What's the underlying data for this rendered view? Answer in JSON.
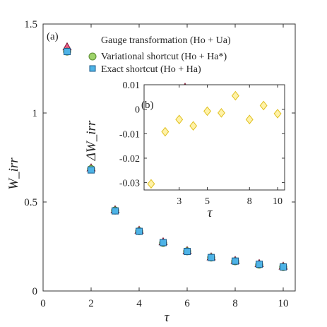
{
  "chart_data": [
    {
      "panel": "(a)",
      "type": "scatter",
      "xlabel": "τ",
      "ylabel": "W_irr",
      "xlim": [
        0,
        10.5
      ],
      "ylim": [
        0,
        1.5
      ],
      "xticks": [
        0,
        2,
        4,
        6,
        8,
        10
      ],
      "yticks": [
        0,
        0.5,
        1,
        1.5
      ],
      "xtick_labels": [
        "0",
        "2",
        "4",
        "6",
        "8",
        "10"
      ],
      "ytick_labels": [
        "0",
        "0.5",
        "1",
        "1.5"
      ],
      "legend_position": "top-right",
      "series": [
        {
          "name": "Gauge transformation (Ho + Ua)",
          "marker": "triangle",
          "color": "#ec5a8a",
          "edge": "#7a1530",
          "x": [
            1,
            2,
            3,
            4,
            5,
            6,
            7,
            8,
            9,
            10
          ],
          "y": [
            1.37,
            0.69,
            0.455,
            0.34,
            0.275,
            0.225,
            0.19,
            0.17,
            0.153,
            0.138
          ]
        },
        {
          "name": "Variational shortcut (Ho + Ha*)",
          "marker": "circle",
          "color": "#9ed36a",
          "edge": "#5a8a30",
          "x": [
            1,
            2,
            3,
            4,
            5,
            6,
            7,
            8,
            9,
            10
          ],
          "y": [
            1.345,
            0.685,
            0.452,
            0.336,
            0.27,
            0.223,
            0.188,
            0.167,
            0.148,
            0.135
          ]
        },
        {
          "name": "Exact shortcut (Ho + Ha)",
          "marker": "square",
          "color": "#4eb3e6",
          "edge": "#1a5a8a",
          "x": [
            1,
            2,
            3,
            4,
            5,
            6,
            7,
            8,
            9,
            10
          ],
          "y": [
            1.345,
            0.68,
            0.45,
            0.335,
            0.272,
            0.222,
            0.188,
            0.168,
            0.15,
            0.135
          ]
        }
      ]
    },
    {
      "panel": "(b)",
      "type": "scatter",
      "xlabel": "τ",
      "ylabel": "ΔW_irr",
      "xlim": [
        0.5,
        10.5
      ],
      "ylim": [
        -0.033,
        0.01
      ],
      "xticks": [
        3,
        5,
        8,
        10
      ],
      "yticks": [
        0.01,
        0,
        -0.01,
        -0.02,
        -0.03
      ],
      "xtick_labels": [
        "3",
        "5",
        "8",
        "10"
      ],
      "ytick_labels": [
        "0.01",
        "0",
        "-0.01",
        "-0.02",
        "-0.03"
      ],
      "series": [
        {
          "name": "",
          "marker": "diamond",
          "color": "#fff2a8",
          "edge": "#e0c020",
          "x": [
            1,
            2,
            3,
            4,
            5,
            6,
            7,
            8,
            9,
            10
          ],
          "y": [
            -0.0305,
            -0.0092,
            -0.0042,
            -0.0068,
            -0.0008,
            -0.0015,
            0.0055,
            -0.0042,
            0.0015,
            -0.0018
          ]
        }
      ]
    }
  ]
}
